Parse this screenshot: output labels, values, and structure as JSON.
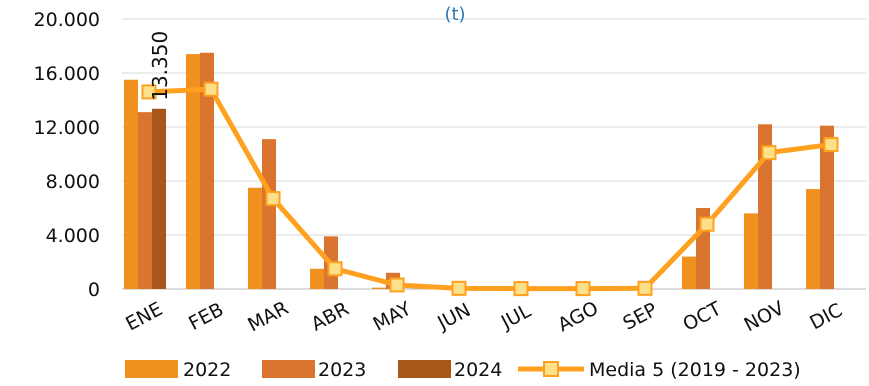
{
  "chart_data": {
    "type": "bar",
    "title": "(t)",
    "categories": [
      "ENE",
      "FEB",
      "MAR",
      "ABR",
      "MAY",
      "JUN",
      "JUL",
      "AGO",
      "SEP",
      "OCT",
      "NOV",
      "DIC"
    ],
    "series": [
      {
        "name": "2022",
        "type": "bar",
        "color": "#F0901E",
        "values": [
          15500,
          17400,
          7500,
          1500,
          100,
          0,
          0,
          0,
          0,
          2400,
          5600,
          7400
        ]
      },
      {
        "name": "2023",
        "type": "bar",
        "color": "#D9752E",
        "values": [
          13100,
          17500,
          11100,
          3900,
          1200,
          0,
          0,
          0,
          0,
          6000,
          12200,
          12100
        ]
      },
      {
        "name": "2024",
        "type": "bar",
        "color": "#A8561A",
        "values": [
          13350,
          null,
          null,
          null,
          null,
          null,
          null,
          null,
          null,
          null,
          null,
          null
        ]
      },
      {
        "name": "Media 5 (2019 - 2023)",
        "type": "line",
        "color": "#FFA01E",
        "marker_color": "#FFE08A",
        "values": [
          14600,
          14800,
          6700,
          1500,
          300,
          50,
          30,
          30,
          50,
          4800,
          10100,
          10700
        ]
      }
    ],
    "data_labels": [
      {
        "series": "2024",
        "category": "ENE",
        "text": "13.350"
      }
    ],
    "yticks": [
      "0",
      "4.000",
      "8.000",
      "12.000",
      "16.000",
      "20.000"
    ],
    "ylim": [
      0,
      20000
    ],
    "grid": true,
    "legend": "bottom"
  }
}
